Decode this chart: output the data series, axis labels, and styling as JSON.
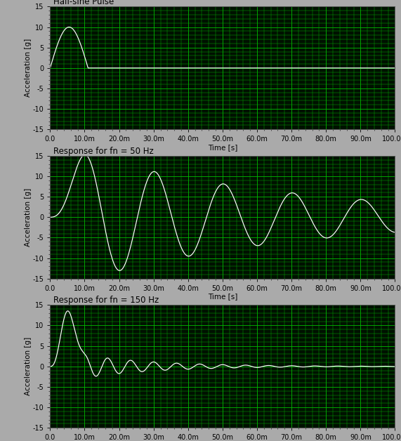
{
  "title1": "Half-sine Pulse",
  "title2": "Response for fn = 50 Hz",
  "title3": "Response for fn = 150 Hz",
  "xlabel": "Time [s]",
  "ylabel": "Acceleration [g]",
  "ylim": [
    -15,
    15
  ],
  "xlim": [
    0.0,
    0.1
  ],
  "bg_color": "#001100",
  "grid_color": "#00bb00",
  "line_color": "#ffffff",
  "outer_bg": "#aaaaaa",
  "title_fontsize": 8.5,
  "label_fontsize": 7.5,
  "tick_fontsize": 7,
  "pulse_amplitude": 10.0,
  "pulse_duration": 0.011,
  "fn_50": 50,
  "fn_150": 150,
  "damping": 0.05
}
